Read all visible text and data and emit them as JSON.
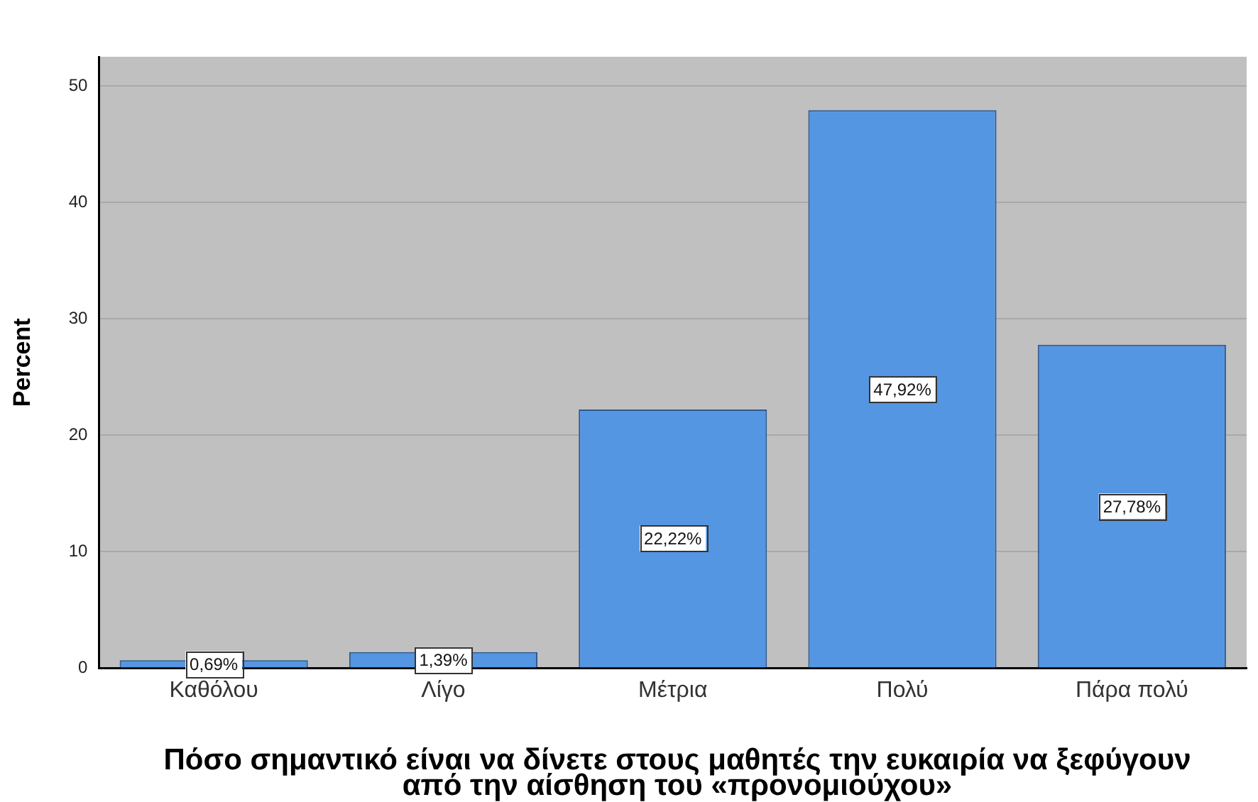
{
  "chart_data": {
    "type": "bar",
    "categories": [
      "Καθόλου",
      "Λίγο",
      "Μέτρια",
      "Πολύ",
      "Πάρα πολύ"
    ],
    "values": [
      0.69,
      1.39,
      22.22,
      47.92,
      27.78
    ],
    "value_labels": [
      "0,69%",
      "1,39%",
      "22,22%",
      "47,92%",
      "27,78%"
    ],
    "color": "#5596e2",
    "xlabel": "Πόσο σημαντικό είναι να δίνετε στους μαθητές την ευκαιρία να ξεφύγουν από την αίσθηση του «προνομιούχου»",
    "ylabel": "Percent",
    "ylim": [
      0,
      52.5
    ],
    "yticks": [
      0,
      10,
      20,
      30,
      40,
      50
    ],
    "grid": "y"
  }
}
